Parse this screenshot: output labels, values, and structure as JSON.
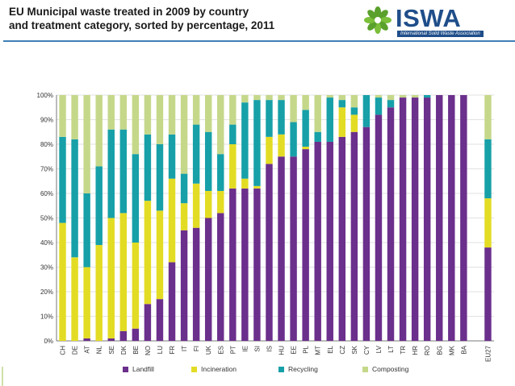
{
  "title_lines": [
    "EU Municipal waste treated in 2009 by country",
    "and treatment category, sorted by percentage, 2011"
  ],
  "logo": {
    "text": "ISWA",
    "tagline": "International Solid Waste Association"
  },
  "colors": {
    "landfill": "#6b2f8c",
    "incineration": "#e3dc24",
    "recycling": "#17a0a8",
    "composting": "#c5d88a",
    "grid": "#d9d9d9",
    "axis": "#555555"
  },
  "chart_data": {
    "type": "bar",
    "stacked": true,
    "title": "EU Municipal waste treated in 2009 by country and treatment category, sorted by percentage, 2011",
    "ylim": [
      0,
      100
    ],
    "yticks": [
      "0%",
      "10%",
      "20%",
      "30%",
      "40%",
      "50%",
      "60%",
      "70%",
      "80%",
      "90%",
      "100%"
    ],
    "grid": true,
    "legend_position": "bottom",
    "categories": [
      "CH",
      "DE",
      "AT",
      "NL",
      "SE",
      "DK",
      "BE",
      "NO",
      "LU",
      "FR",
      "IT",
      "FI",
      "UK",
      "ES",
      "PT",
      "IE",
      "SI",
      "IS",
      "HU",
      "EE",
      "PL",
      "MT",
      "EL",
      "CZ",
      "SK",
      "CY",
      "LV",
      "LT",
      "TR",
      "HR",
      "RO",
      "BG",
      "MK",
      "BA",
      "",
      "EU27"
    ],
    "series": [
      {
        "name": "Landfill",
        "key": "landfill",
        "values": [
          0,
          0,
          1,
          0,
          1,
          4,
          5,
          15,
          17,
          32,
          45,
          46,
          50,
          52,
          62,
          62,
          62,
          72,
          75,
          75,
          78,
          81,
          81,
          83,
          85,
          87,
          92,
          95,
          99,
          99,
          99,
          100,
          100,
          100,
          null,
          38
        ]
      },
      {
        "name": "Incineration",
        "key": "incineration",
        "values": [
          48,
          34,
          29,
          39,
          49,
          48,
          35,
          42,
          36,
          34,
          11,
          18,
          11,
          9,
          18,
          4,
          1,
          11,
          9,
          0,
          1,
          0,
          0,
          12,
          7,
          0,
          0,
          0,
          0,
          0,
          0,
          0,
          0,
          0,
          null,
          20
        ]
      },
      {
        "name": "Recycling",
        "key": "recycling",
        "values": [
          35,
          48,
          30,
          32,
          36,
          34,
          36,
          27,
          27,
          18,
          12,
          24,
          24,
          15,
          8,
          31,
          35,
          15,
          14,
          14,
          15,
          4,
          18,
          3,
          3,
          13,
          7,
          3,
          0,
          0,
          1,
          0,
          0,
          0,
          null,
          24
        ]
      },
      {
        "name": "Composting",
        "key": "composting",
        "values": [
          17,
          18,
          40,
          29,
          14,
          14,
          24,
          16,
          20,
          16,
          32,
          12,
          15,
          24,
          12,
          3,
          2,
          2,
          2,
          11,
          6,
          15,
          1,
          2,
          5,
          0,
          1,
          2,
          1,
          1,
          0,
          0,
          0,
          0,
          null,
          18
        ]
      }
    ]
  }
}
